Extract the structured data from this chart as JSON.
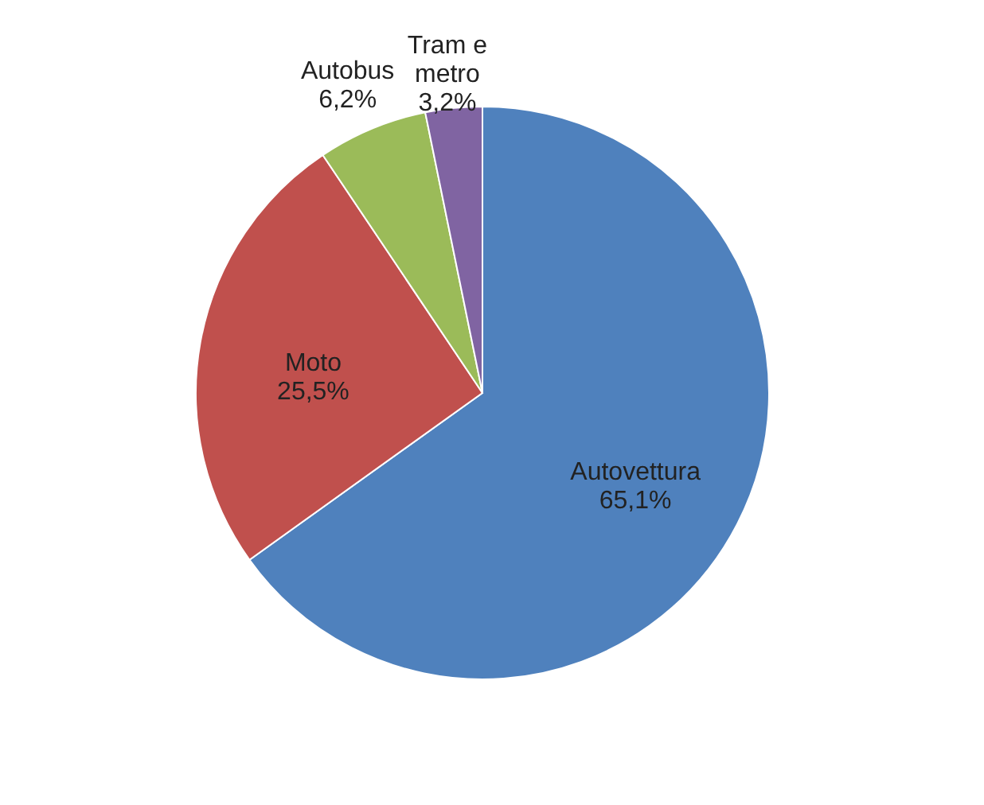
{
  "chart_data": {
    "type": "pie",
    "categories": [
      "Autovettura",
      "Moto",
      "Autobus",
      "Tram e metro"
    ],
    "values": [
      65.1,
      25.5,
      6.2,
      3.2
    ],
    "colors": [
      "#4f81bd",
      "#c0504d",
      "#9bbb59",
      "#8064a2"
    ],
    "value_labels": [
      "65,1%",
      "25,5%",
      "6,2%",
      "3,2%"
    ]
  }
}
